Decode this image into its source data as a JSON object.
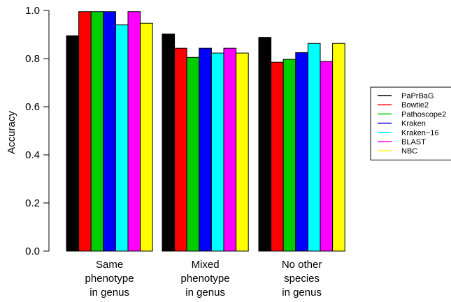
{
  "chart_data": {
    "type": "bar",
    "title": "",
    "xlabel": "",
    "ylabel": "Accuracy",
    "ylim": [
      0,
      1
    ],
    "yticks": [
      "0.0",
      "0.2",
      "0.4",
      "0.6",
      "0.8",
      "1.0"
    ],
    "grid": false,
    "legend_position": "right",
    "categories": [
      [
        "Same",
        "phenotype",
        "in genus"
      ],
      [
        "Mixed",
        "phenotype",
        "in genus"
      ],
      [
        "No other",
        "species",
        "in genus"
      ]
    ],
    "series": [
      {
        "name": "PaPrBaG",
        "color": "#000000",
        "values": [
          0.895,
          0.902,
          0.888
        ]
      },
      {
        "name": "Bowtie2",
        "color": "#ff0000",
        "values": [
          0.995,
          0.843,
          0.785
        ]
      },
      {
        "name": "Pathoscope2",
        "color": "#00cd00",
        "values": [
          0.995,
          0.805,
          0.797
        ]
      },
      {
        "name": "Kraken",
        "color": "#0000ff",
        "values": [
          0.995,
          0.843,
          0.825
        ]
      },
      {
        "name": "Kraken−16",
        "color": "#00ffff",
        "values": [
          0.94,
          0.823,
          0.863
        ]
      },
      {
        "name": "BLAST",
        "color": "#ff00ff",
        "values": [
          0.995,
          0.843,
          0.788
        ]
      },
      {
        "name": "NBC",
        "color": "#ffff00",
        "values": [
          0.947,
          0.823,
          0.863
        ]
      }
    ]
  }
}
